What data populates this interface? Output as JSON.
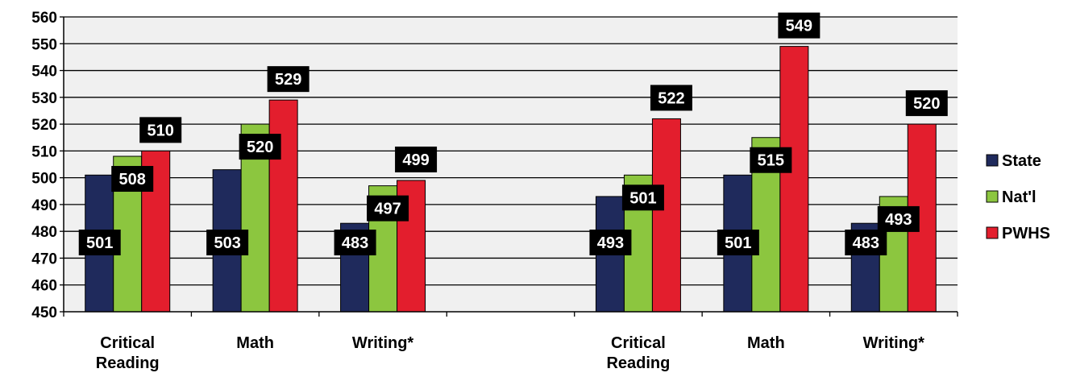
{
  "chart_data": {
    "type": "bar",
    "ylim": [
      450,
      560
    ],
    "ytick_step": 10,
    "grid": true,
    "legend_position": "right",
    "groups": [
      {
        "label": [
          "Critical",
          "Reading"
        ],
        "values": [
          501,
          508,
          510
        ]
      },
      {
        "label": [
          "Math"
        ],
        "values": [
          503,
          520,
          529
        ]
      },
      {
        "label": [
          "Writing*"
        ],
        "values": [
          483,
          497,
          499
        ]
      },
      {
        "label": [],
        "values": []
      },
      {
        "label": [
          "Critical",
          "Reading"
        ],
        "values": [
          493,
          501,
          522
        ]
      },
      {
        "label": [
          "Math"
        ],
        "values": [
          501,
          515,
          549
        ]
      },
      {
        "label": [
          "Writing*"
        ],
        "values": [
          483,
          493,
          520
        ]
      }
    ],
    "series": [
      {
        "name": "State",
        "color": "#1f2a5c"
      },
      {
        "name": "Nat'l",
        "color": "#8cc63f"
      },
      {
        "name": "PWHS",
        "color": "#e31e2d"
      }
    ],
    "colors": {
      "plot_background": "#f0f0f0",
      "gridline": "#000000",
      "value_label_background": "#000000",
      "value_label_text": "#ffffff"
    }
  }
}
